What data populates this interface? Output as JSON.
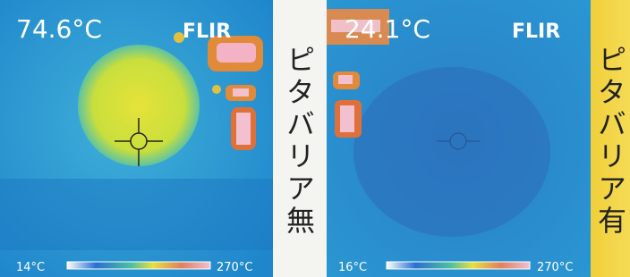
{
  "panels": [
    {
      "reading": "74.6°C",
      "brand": "FLIR",
      "scale_min": "14°C",
      "scale_max": "270°C",
      "label": "ピタバリア無"
    },
    {
      "reading": "24.1°C",
      "brand": "FLIR",
      "scale_min": "16°C",
      "scale_max": "270°C",
      "label": "ピタバリア有"
    }
  ]
}
